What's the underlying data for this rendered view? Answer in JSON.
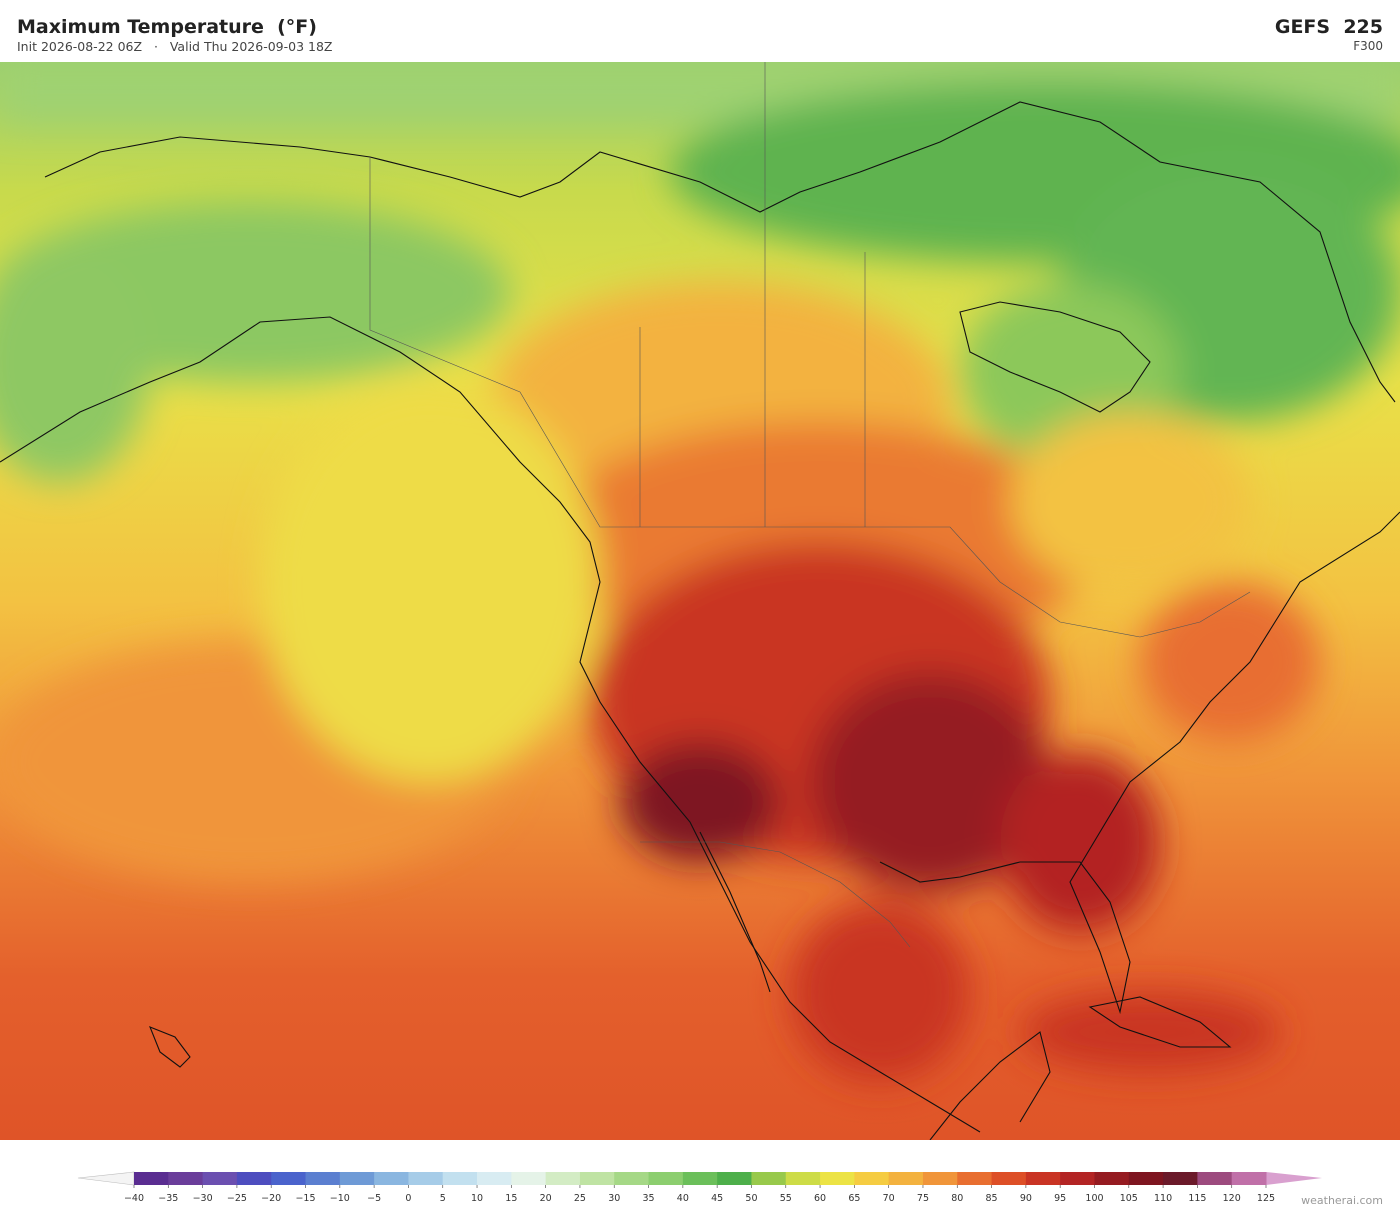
{
  "header": {
    "title": "Maximum Temperature  (°F)",
    "subtitle": "Init 2026-08-22 06Z   ·   Valid Thu 2026-09-03 18Z",
    "model": "GEFS  225",
    "forecast_hour": "F300"
  },
  "colorbar": {
    "ticks": [
      {
        "value": -40,
        "label": "−40"
      },
      {
        "value": -35,
        "label": "−35"
      },
      {
        "value": -30,
        "label": "−30"
      },
      {
        "value": -25,
        "label": "−25"
      },
      {
        "value": -20,
        "label": "−20"
      },
      {
        "value": -15,
        "label": "−15"
      },
      {
        "value": -10,
        "label": "−10"
      },
      {
        "value": -5,
        "label": "−5"
      },
      0,
      5,
      10,
      15,
      20,
      25,
      30,
      35,
      40,
      45,
      50,
      55,
      60,
      65,
      70,
      75,
      80,
      85,
      90,
      95,
      100,
      105,
      110,
      115,
      120,
      125
    ],
    "colors": [
      "#5a2d91",
      "#6a3d9a",
      "#6b4fb0",
      "#4d4dbf",
      "#4a63cc",
      "#5b7fd0",
      "#6e9ad6",
      "#8ab6e0",
      "#a6cce8",
      "#c2e0ef",
      "#d8ecf2",
      "#e5f3e8",
      "#d3ecc4",
      "#bfe3a3",
      "#a5d886",
      "#8cce6f",
      "#6bbf5a",
      "#4daf4a",
      "#98c94b",
      "#cddc47",
      "#ece345",
      "#f5cc42",
      "#f3b23f",
      "#f0953a",
      "#e86e30",
      "#dd4f27",
      "#c93424",
      "#b32424",
      "#951b21",
      "#7e1520",
      "#6b1a2a",
      "#9c4a7e",
      "#c070a8"
    ]
  },
  "watermark": "weatherai.com"
}
